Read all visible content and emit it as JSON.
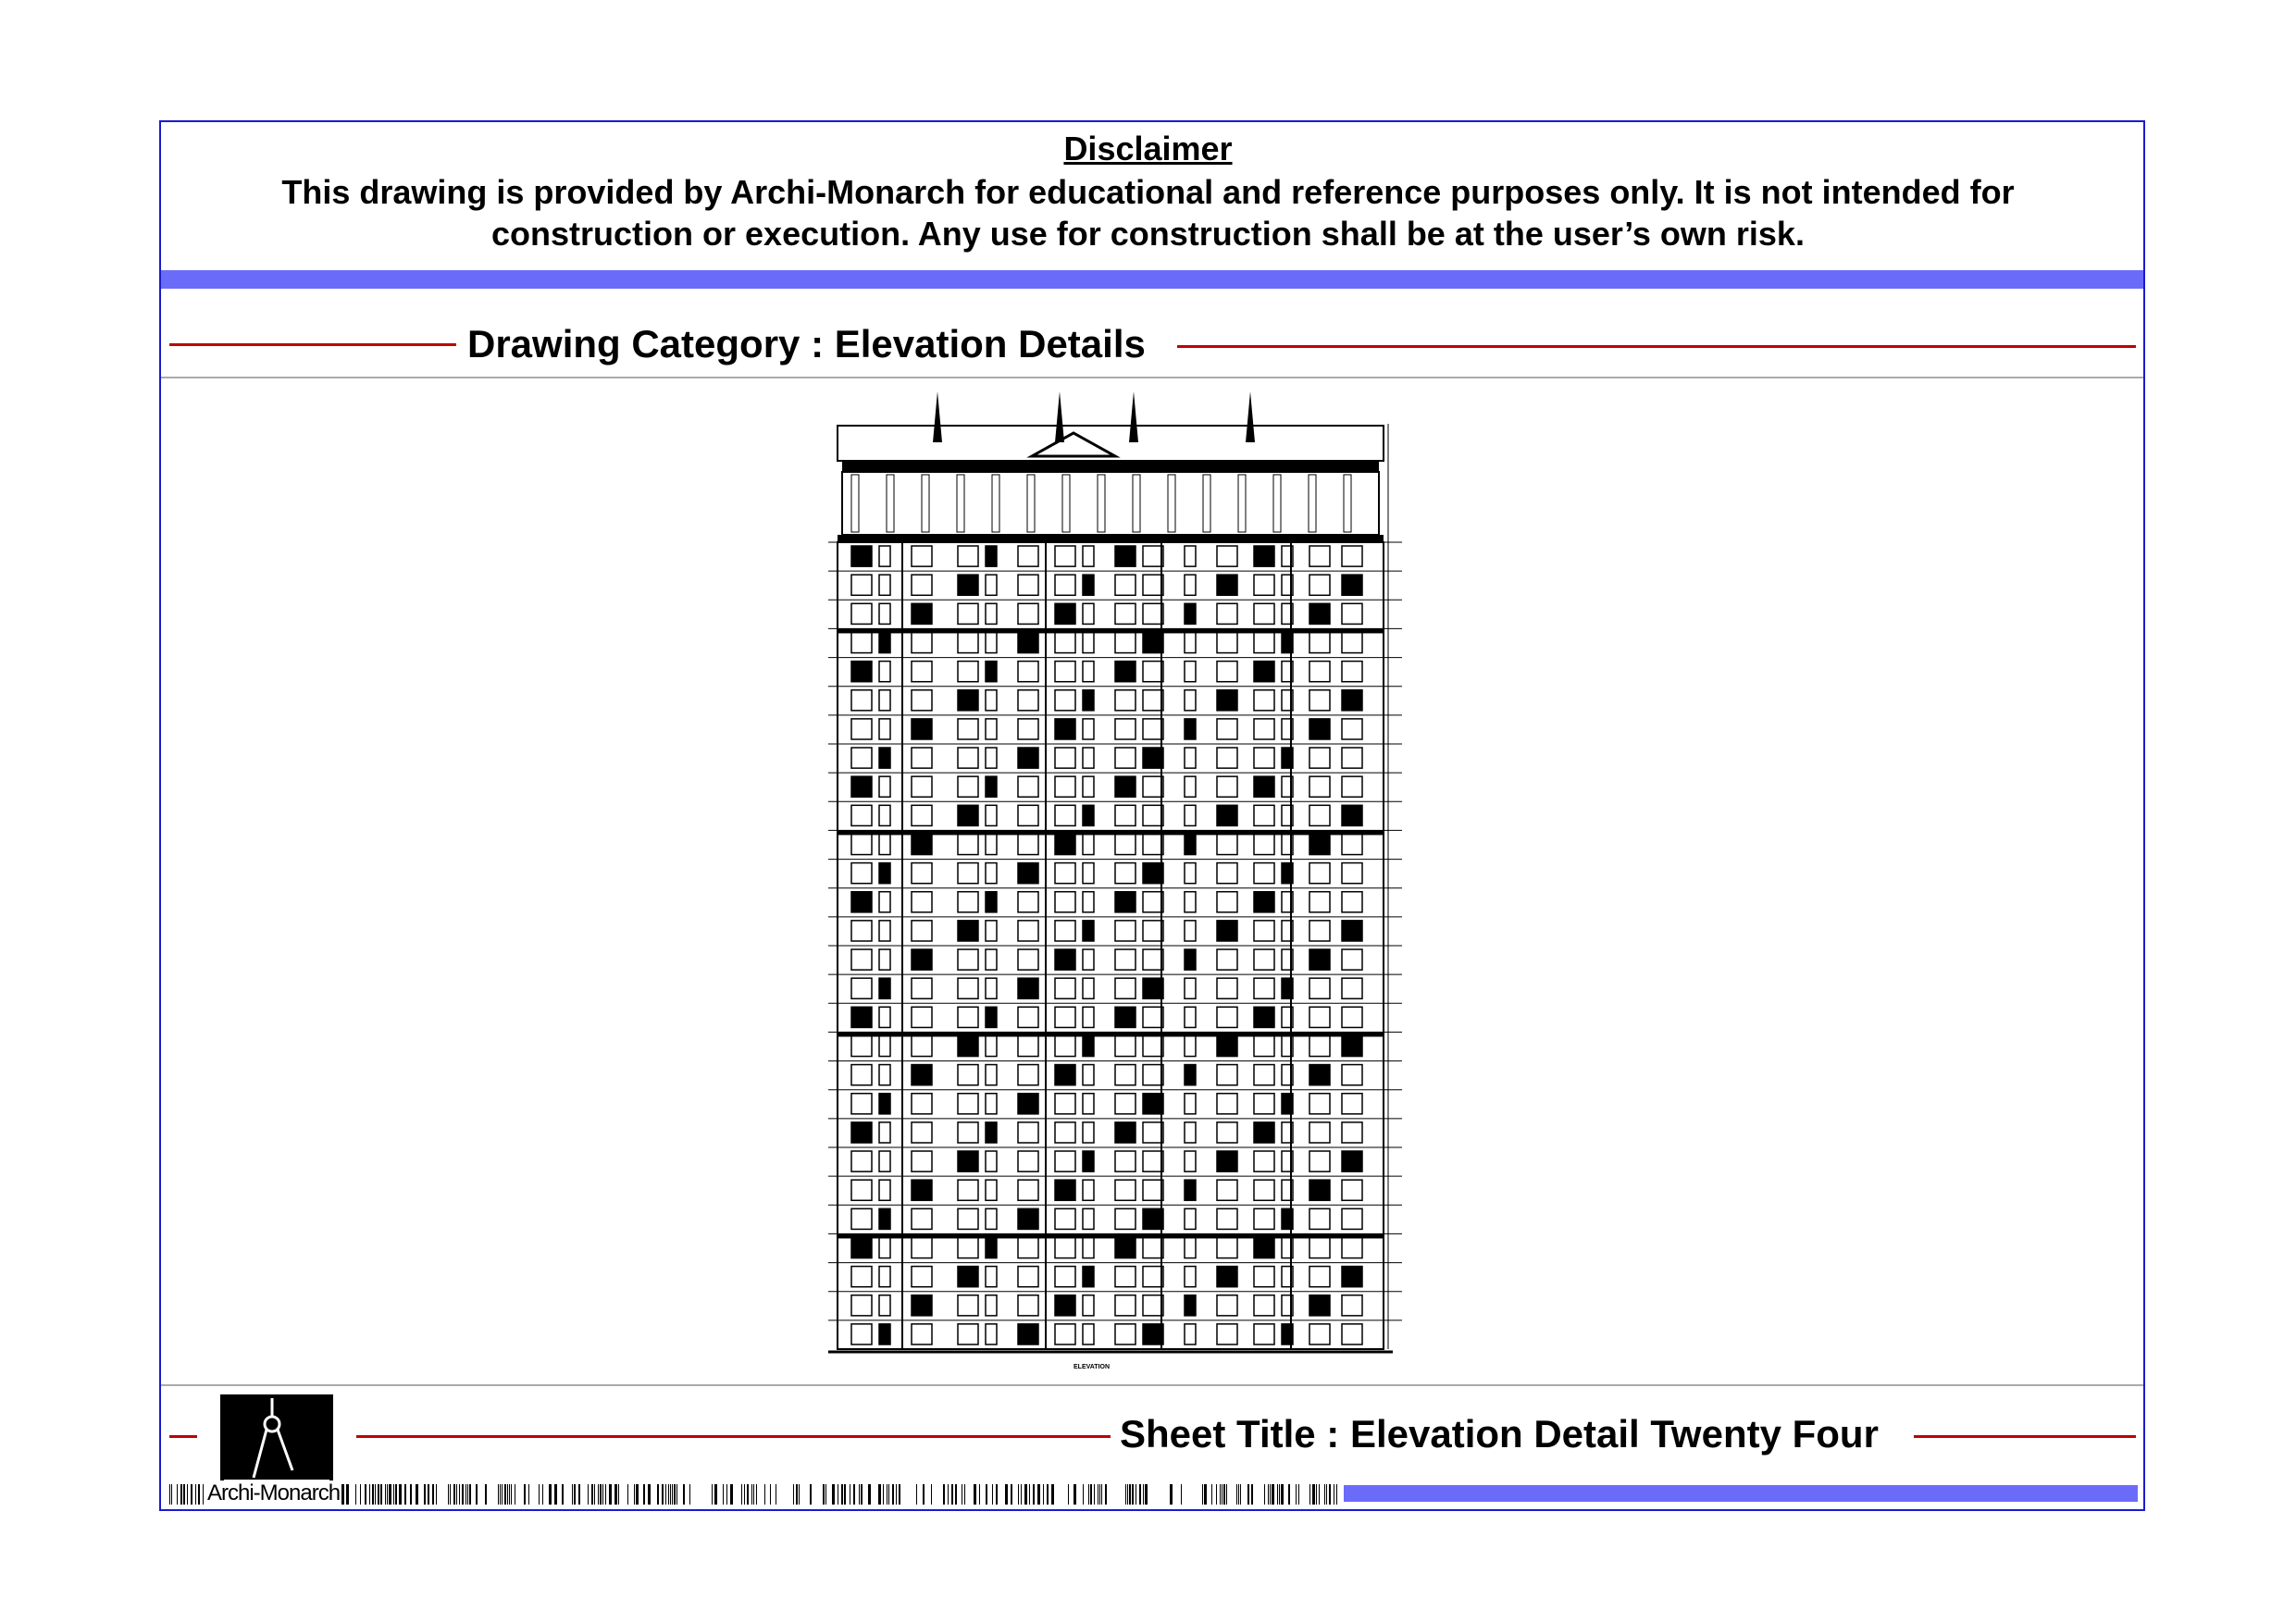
{
  "disclaimer": {
    "title": "Disclaimer",
    "text": "This drawing is provided by Archi-Monarch for educational and reference purposes only. It is not intended for construction or execution. Any use for construction shall be at the user’s own risk."
  },
  "category": {
    "label": "Drawing Category : Elevation Details"
  },
  "drawing": {
    "caption": "ELEVATION"
  },
  "footer": {
    "brand": "Archi-Monarch",
    "sheet_title": "Sheet Title : Elevation Detail Twenty Four",
    "logo_icon": "compass-divider-icon"
  },
  "colors": {
    "frame": "#1a1ad0",
    "accent_band": "#6b6bfa",
    "rule": "#c00000"
  }
}
